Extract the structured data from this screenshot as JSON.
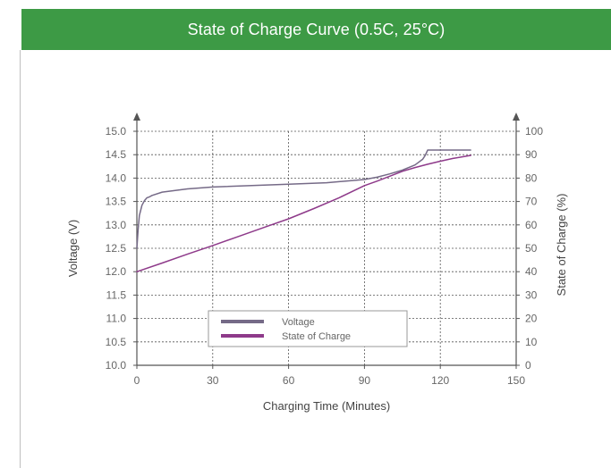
{
  "theme": {
    "header_bg": "#3d9a45",
    "frame_color": "#bfbfbf",
    "axis_color": "#555555",
    "grid_color": "#555555"
  },
  "header": {
    "title": "State of Charge Curve (0.5C, 25°C)"
  },
  "chart_data": {
    "type": "line",
    "title": "State of Charge Curve (0.5C, 25°C)",
    "xlabel": "Charging Time (Minutes)",
    "ylabel": "Voltage (V)",
    "y2label": "State of Charge (%)",
    "xlim": [
      0,
      150
    ],
    "ylim": [
      10.0,
      15.0
    ],
    "y2lim": [
      0,
      100
    ],
    "x_ticks": [
      "0",
      "30",
      "60",
      "90",
      "120",
      "150"
    ],
    "y_ticks": [
      "10.0",
      "10.5",
      "11.0",
      "11.5",
      "12.0",
      "12.5",
      "13.0",
      "13.5",
      "14.0",
      "14.5",
      "15.0"
    ],
    "y2_ticks": [
      "0",
      "10",
      "20",
      "30",
      "40",
      "50",
      "60",
      "70",
      "80",
      "90",
      "100"
    ],
    "grid": true,
    "legend_position": "bottom-center",
    "series": [
      {
        "name": "Voltage",
        "axis": "left",
        "color": "#756a87",
        "x": [
          0,
          0.5,
          1,
          2,
          3,
          4,
          5,
          6,
          10,
          20,
          30,
          60,
          75,
          90,
          95,
          100,
          105,
          110,
          113,
          114,
          115,
          118,
          125,
          132
        ],
        "y": [
          12.5,
          12.9,
          13.2,
          13.42,
          13.52,
          13.58,
          13.6,
          13.63,
          13.7,
          13.77,
          13.81,
          13.87,
          13.9,
          13.97,
          14.02,
          14.09,
          14.17,
          14.28,
          14.4,
          14.48,
          14.6,
          14.6,
          14.6,
          14.6
        ]
      },
      {
        "name": "State of Charge",
        "axis": "right",
        "color": "#8e3a8a",
        "x": [
          0,
          10,
          20,
          30,
          40,
          50,
          60,
          70,
          80,
          90,
          95,
          100,
          105,
          110,
          115,
          120,
          125,
          132
        ],
        "y": [
          40,
          43.7,
          47.5,
          51.2,
          55,
          58.8,
          62.6,
          67,
          71.6,
          76.8,
          78.7,
          80.8,
          82.9,
          84.5,
          85.9,
          87.2,
          88.4,
          89.7
        ]
      }
    ]
  }
}
